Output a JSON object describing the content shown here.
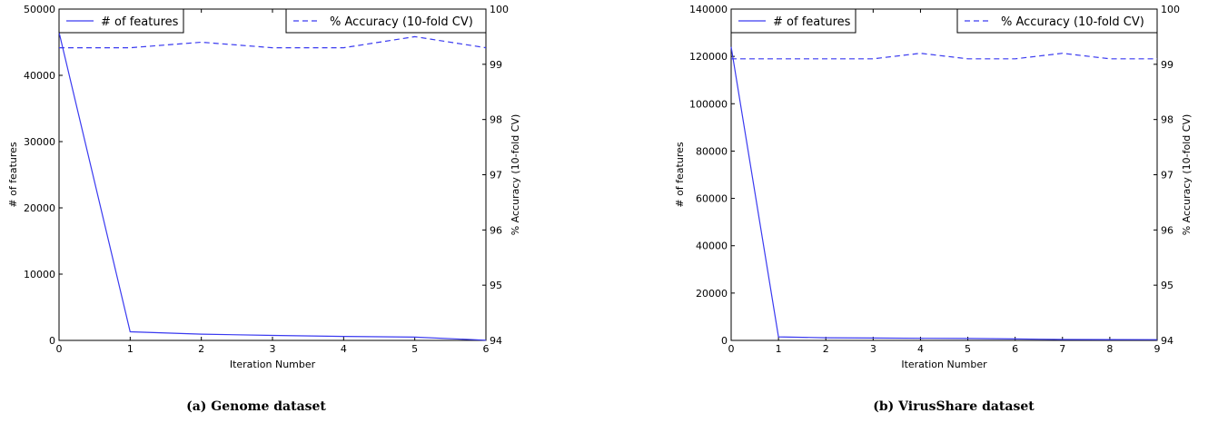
{
  "chart_data": [
    {
      "type": "line",
      "caption": "(a) Genome dataset",
      "xlabel": "Iteration Number",
      "ylabel": "# of features",
      "y2label": "% Accuracy (10-fold CV)",
      "x": [
        0,
        1,
        2,
        3,
        4,
        5,
        6
      ],
      "xlim": [
        0,
        6
      ],
      "ylim": [
        0,
        50000
      ],
      "y2lim": [
        94,
        100
      ],
      "xticks": [
        "0",
        "1",
        "2",
        "3",
        "4",
        "5",
        "6"
      ],
      "yticks": [
        "0",
        "10000",
        "20000",
        "30000",
        "40000",
        "50000"
      ],
      "y2ticks": [
        "94",
        "95",
        "96",
        "97",
        "98",
        "99",
        "100"
      ],
      "grid": false,
      "series": [
        {
          "name": "# of features",
          "axis": "left",
          "style": "solid",
          "values": [
            46500,
            1300,
            950,
            750,
            600,
            500,
            30
          ]
        },
        {
          "name": "% Accuracy (10-fold CV)",
          "axis": "right",
          "style": "dashed",
          "values": [
            99.3,
            99.3,
            99.4,
            99.3,
            99.3,
            99.5,
            99.3
          ]
        }
      ],
      "legend_left": "upper-left",
      "legend_right": "upper-right"
    },
    {
      "type": "line",
      "caption": "(b) VirusShare dataset",
      "xlabel": "Iteration Number",
      "ylabel": "# of features",
      "y2label": "% Accuracy (10-fold CV)",
      "x": [
        0,
        1,
        2,
        3,
        4,
        5,
        6,
        7,
        8,
        9
      ],
      "xlim": [
        0,
        9
      ],
      "ylim": [
        0,
        140000
      ],
      "y2lim": [
        94,
        100
      ],
      "xticks": [
        "0",
        "1",
        "2",
        "3",
        "4",
        "5",
        "6",
        "7",
        "8",
        "9"
      ],
      "yticks": [
        "0",
        "20000",
        "40000",
        "60000",
        "80000",
        "100000",
        "120000",
        "140000"
      ],
      "y2ticks": [
        "94",
        "95",
        "96",
        "97",
        "98",
        "99",
        "100"
      ],
      "grid": false,
      "series": [
        {
          "name": "# of features",
          "axis": "left",
          "style": "solid",
          "values": [
            124000,
            1500,
            1100,
            1000,
            900,
            800,
            600,
            400,
            350,
            300
          ]
        },
        {
          "name": "% Accuracy (10-fold CV)",
          "axis": "right",
          "style": "dashed",
          "values": [
            99.1,
            99.1,
            99.1,
            99.1,
            99.2,
            99.1,
            99.1,
            99.2,
            99.1,
            99.1
          ]
        }
      ],
      "legend_left": "upper-left",
      "legend_right": "upper-right"
    }
  ],
  "colors": {
    "line": "#3a3af0",
    "axis": "#000000"
  }
}
